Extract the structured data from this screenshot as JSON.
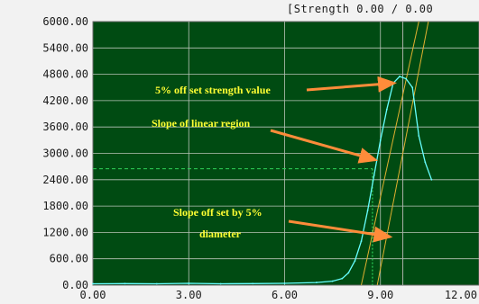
{
  "header": {
    "readout": "[Strength 0.00 / 0.00"
  },
  "colors": {
    "plot_background": "#004b12",
    "curve": "#66ffff",
    "grid": "#b8c4b8",
    "annotation_text": "#ffff33",
    "annotation_arrow": "#ff8c3a",
    "slope_lines": "#e0b030",
    "dashed_marker": "#2ed15a"
  },
  "chart_data": {
    "type": "line",
    "title": "",
    "xlabel": "",
    "ylabel": "",
    "xlim": [
      0,
      12
    ],
    "ylim": [
      0,
      6000
    ],
    "grid": true,
    "x_ticks": [
      0,
      3,
      6,
      9,
      12
    ],
    "y_ticks": [
      0,
      600,
      1200,
      1800,
      2400,
      3000,
      3600,
      4200,
      4800,
      5400,
      6000
    ],
    "x_tick_labels": [
      "0.00",
      "3.00",
      "6.00",
      "9.00",
      "12.00"
    ],
    "y_tick_labels": [
      "0.00",
      "600.00",
      "1200.00",
      "1800.00",
      "2400.00",
      "3000.00",
      "3600.00",
      "4200.00",
      "4800.00",
      "5400.00",
      "6000.00"
    ],
    "series": [
      {
        "x": [
          0,
          1,
          2,
          3,
          4,
          5,
          6,
          7,
          7.5,
          7.8,
          8.0,
          8.2,
          8.4,
          8.6,
          8.8,
          9.0,
          9.2,
          9.4,
          9.6,
          9.8,
          10.0,
          10.2,
          10.4,
          10.6
        ],
        "y": [
          30,
          35,
          30,
          40,
          30,
          35,
          40,
          60,
          90,
          150,
          280,
          550,
          1000,
          1700,
          2500,
          3300,
          4000,
          4600,
          4750,
          4700,
          4500,
          3400,
          2800,
          2400
        ]
      }
    ],
    "reference_lines": {
      "horizontal_dashed_y": 2650,
      "vertical_dotted_x": 8.75,
      "linear_slope_line": [
        [
          8.4,
          0
        ],
        [
          10.2,
          6000
        ]
      ],
      "offset_slope_line": [
        [
          8.9,
          0
        ],
        [
          10.5,
          6000
        ]
      ],
      "vertical_solid_x": 9.7
    },
    "annotations": [
      {
        "text": "5% off set strength value",
        "arrow_to": [
          9.6,
          4600
        ]
      },
      {
        "text": "Slope of linear region",
        "arrow_to": [
          8.9,
          2850
        ]
      },
      {
        "text": "Slope off set by 5%",
        "arrow_to": [
          9.3,
          1100
        ]
      },
      {
        "text": "diameter"
      }
    ]
  }
}
